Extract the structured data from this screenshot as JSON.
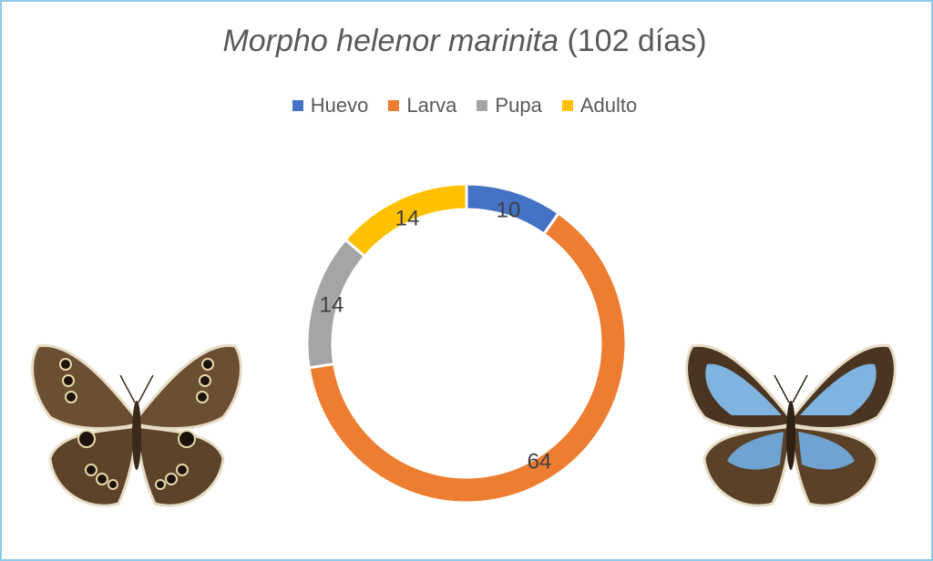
{
  "title": {
    "scientific_name": "Morpho helenor marinita",
    "suffix": "(102 días)"
  },
  "colors": {
    "huevo": "#4472c4",
    "larva": "#ed7d31",
    "pupa": "#a5a5a5",
    "adulto": "#ffc000",
    "frame": "#8ec9ea"
  },
  "chart_data": {
    "type": "pie",
    "variant": "donut",
    "title": "Morpho helenor marinita (102 días)",
    "legend_position": "top",
    "categories": [
      "Huevo",
      "Larva",
      "Pupa",
      "Adulto"
    ],
    "values": [
      10,
      64,
      14,
      14
    ],
    "colors": [
      "#4472c4",
      "#ed7d31",
      "#a5a5a5",
      "#ffc000"
    ],
    "data_labels": [
      "10",
      "64",
      "14",
      "14"
    ]
  }
}
